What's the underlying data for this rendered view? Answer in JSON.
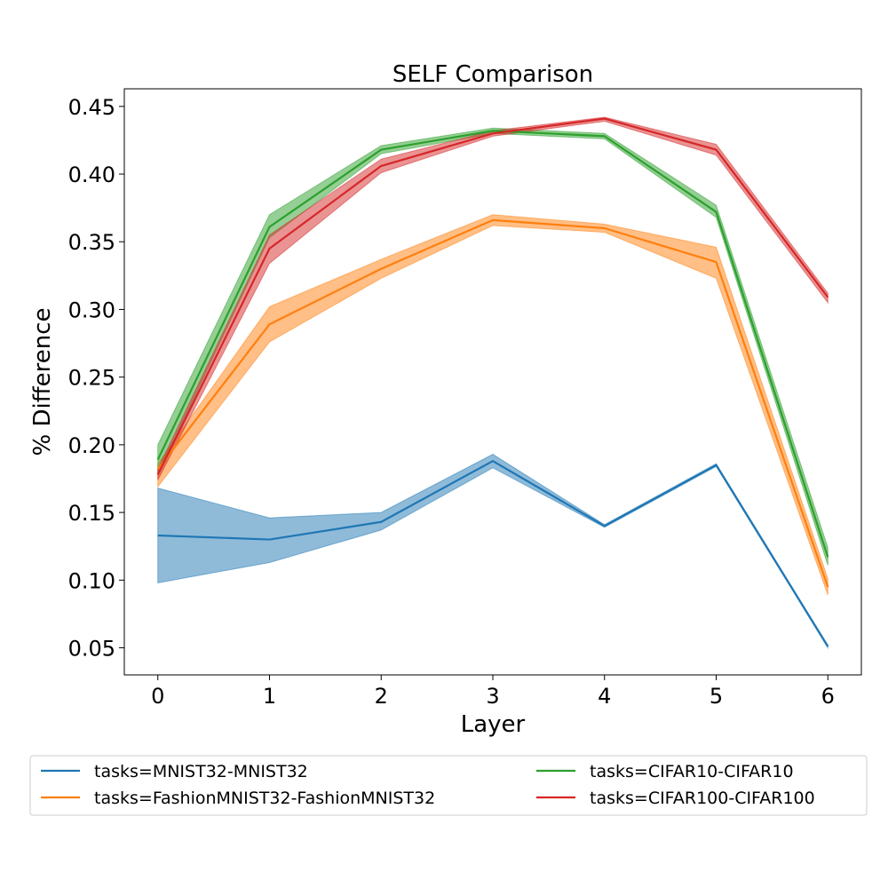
{
  "chart_data": {
    "type": "line",
    "title": "SELF Comparison",
    "xlabel": "Layer",
    "ylabel": "% Difference",
    "xlim": [
      -0.3,
      6.3
    ],
    "ylim": [
      0.03,
      0.463
    ],
    "x": [
      0,
      1,
      2,
      3,
      4,
      5,
      6
    ],
    "yticks": [
      0.05,
      0.1,
      0.15,
      0.2,
      0.25,
      0.3,
      0.35,
      0.4,
      0.45
    ],
    "ytick_labels": [
      "0.05",
      "0.10",
      "0.15",
      "0.20",
      "0.25",
      "0.30",
      "0.35",
      "0.40",
      "0.45"
    ],
    "xtick_labels": [
      "0",
      "1",
      "2",
      "3",
      "4",
      "5",
      "6"
    ],
    "grid": false,
    "legend_placement": "below plot, two columns",
    "series": [
      {
        "name": "tasks=MNIST32-MNIST32",
        "color": "#1f77b4",
        "values": [
          0.133,
          0.13,
          0.143,
          0.188,
          0.14,
          0.185,
          0.051
        ],
        "lower": [
          0.098,
          0.113,
          0.137,
          0.183,
          0.139,
          0.184,
          0.05
        ],
        "upper": [
          0.168,
          0.146,
          0.15,
          0.193,
          0.141,
          0.186,
          0.052
        ]
      },
      {
        "name": "tasks=FashionMNIST32-FashionMNIST32",
        "color": "#ff7f0e",
        "values": [
          0.182,
          0.289,
          0.33,
          0.366,
          0.36,
          0.335,
          0.095
        ],
        "lower": [
          0.169,
          0.276,
          0.323,
          0.362,
          0.357,
          0.323,
          0.089
        ],
        "upper": [
          0.186,
          0.302,
          0.337,
          0.37,
          0.363,
          0.346,
          0.101
        ]
      },
      {
        "name": "tasks=CIFAR10-CIFAR10",
        "color": "#2ca02c",
        "values": [
          0.189,
          0.361,
          0.418,
          0.432,
          0.428,
          0.372,
          0.117
        ],
        "lower": [
          0.178,
          0.353,
          0.415,
          0.43,
          0.426,
          0.368,
          0.111
        ],
        "upper": [
          0.2,
          0.37,
          0.421,
          0.434,
          0.43,
          0.377,
          0.124
        ]
      },
      {
        "name": "tasks=CIFAR100-CIFAR100",
        "color": "#d62728",
        "values": [
          0.178,
          0.345,
          0.406,
          0.43,
          0.441,
          0.418,
          0.309
        ],
        "lower": [
          0.174,
          0.334,
          0.401,
          0.428,
          0.439,
          0.414,
          0.305
        ],
        "upper": [
          0.182,
          0.355,
          0.411,
          0.432,
          0.442,
          0.422,
          0.312
        ]
      }
    ]
  }
}
